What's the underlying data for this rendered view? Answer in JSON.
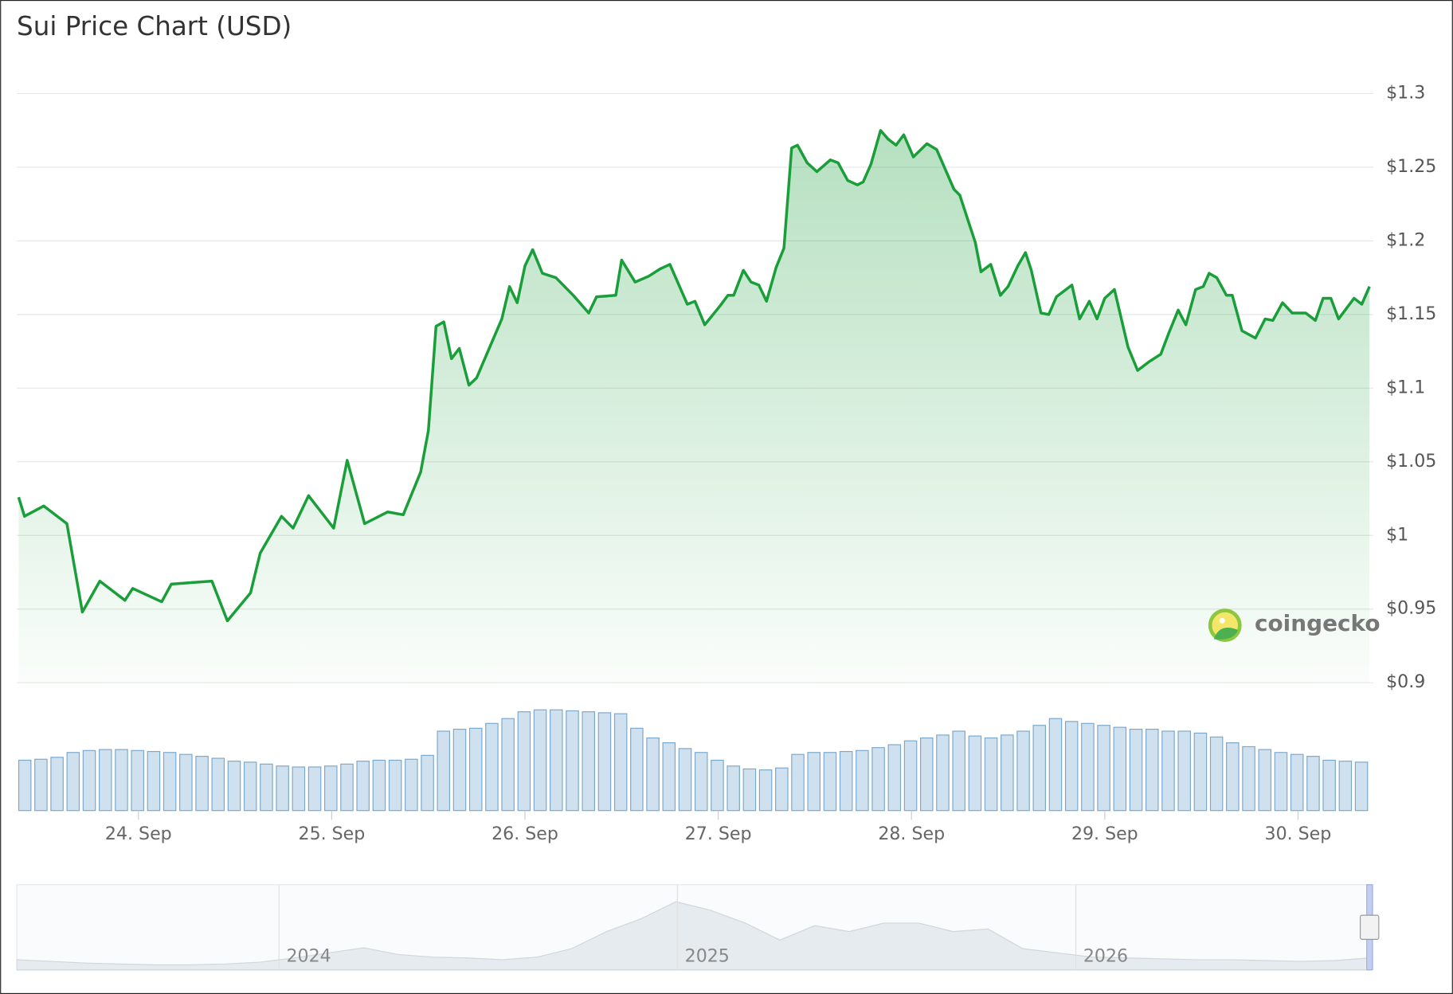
{
  "chart_data": {
    "type": "line",
    "title": "Sui Price Chart (USD)",
    "color": "#1a9e3a",
    "xlim": [
      23.38,
      30.37
    ],
    "xticks": [
      {
        "value": 24,
        "label": "24. Sep"
      },
      {
        "value": 25,
        "label": "25. Sep"
      },
      {
        "value": 26,
        "label": "26. Sep"
      },
      {
        "value": 27,
        "label": "27. Sep"
      },
      {
        "value": 28,
        "label": "28. Sep"
      },
      {
        "value": 29,
        "label": "29. Sep"
      },
      {
        "value": 30,
        "label": "30. Sep"
      }
    ],
    "ylim": [
      0.9,
      1.3
    ],
    "yticks": [
      {
        "value": 0.9,
        "label": "$0.9"
      },
      {
        "value": 0.95,
        "label": "$0.95"
      },
      {
        "value": 1,
        "label": "$1"
      },
      {
        "value": 1.05,
        "label": "$1.05"
      },
      {
        "value": 1.1,
        "label": "$1.1"
      },
      {
        "value": 1.15,
        "label": "$1.15"
      },
      {
        "value": 1.2,
        "label": "$1.2"
      },
      {
        "value": 1.25,
        "label": "$1.25"
      },
      {
        "value": 1.3,
        "label": "$1.3"
      }
    ],
    "grid": true,
    "x": [
      23.38,
      23.41,
      23.51,
      23.63,
      23.71,
      23.8,
      23.93,
      23.97,
      24.12,
      24.17,
      24.38,
      24.46,
      24.58,
      24.63,
      24.74,
      24.8,
      24.88,
      25.01,
      25.08,
      25.17,
      25.29,
      25.37,
      25.46,
      25.5,
      25.54,
      25.58,
      25.62,
      25.66,
      25.71,
      25.75,
      25.88,
      25.92,
      25.96,
      26.0,
      26.04,
      26.09,
      26.16,
      26.25,
      26.33,
      26.37,
      26.47,
      26.5,
      26.57,
      26.64,
      26.7,
      26.75,
      26.84,
      26.88,
      26.93,
      27.01,
      27.05,
      27.08,
      27.13,
      27.17,
      27.21,
      27.25,
      27.3,
      27.34,
      27.38,
      27.41,
      27.46,
      27.51,
      27.58,
      27.62,
      27.67,
      27.72,
      27.75,
      27.79,
      27.84,
      27.88,
      27.92,
      27.96,
      28.01,
      28.08,
      28.13,
      28.22,
      28.25,
      28.3,
      28.33,
      28.36,
      28.41,
      28.46,
      28.5,
      28.55,
      28.59,
      28.62,
      28.67,
      28.71,
      28.75,
      28.83,
      28.87,
      28.92,
      28.96,
      29.0,
      29.05,
      29.12,
      29.17,
      29.23,
      29.29,
      29.33,
      29.38,
      29.42,
      29.47,
      29.51,
      29.54,
      29.58,
      29.63,
      29.66,
      29.71,
      29.78,
      29.83,
      29.87,
      29.92,
      29.97,
      30.04,
      30.09,
      30.13,
      30.17,
      30.21,
      30.29,
      30.33,
      30.37
    ],
    "values": [
      1.026,
      1.013,
      1.02,
      1.008,
      0.948,
      0.969,
      0.956,
      0.964,
      0.955,
      0.967,
      0.969,
      0.942,
      0.961,
      0.988,
      1.013,
      1.005,
      1.027,
      1.005,
      1.051,
      1.008,
      1.016,
      1.014,
      1.043,
      1.071,
      1.142,
      1.145,
      1.12,
      1.127,
      1.102,
      1.107,
      1.147,
      1.169,
      1.158,
      1.183,
      1.194,
      1.178,
      1.175,
      1.163,
      1.151,
      1.162,
      1.163,
      1.187,
      1.172,
      1.176,
      1.181,
      1.184,
      1.157,
      1.159,
      1.143,
      1.156,
      1.163,
      1.163,
      1.18,
      1.172,
      1.17,
      1.159,
      1.182,
      1.195,
      1.263,
      1.265,
      1.253,
      1.247,
      1.255,
      1.253,
      1.241,
      1.238,
      1.24,
      1.252,
      1.275,
      1.269,
      1.265,
      1.272,
      1.257,
      1.266,
      1.262,
      1.235,
      1.231,
      1.211,
      1.199,
      1.179,
      1.184,
      1.163,
      1.169,
      1.183,
      1.192,
      1.18,
      1.151,
      1.15,
      1.162,
      1.17,
      1.147,
      1.159,
      1.147,
      1.161,
      1.167,
      1.128,
      1.112,
      1.118,
      1.123,
      1.137,
      1.153,
      1.143,
      1.167,
      1.169,
      1.178,
      1.175,
      1.163,
      1.163,
      1.139,
      1.134,
      1.147,
      1.146,
      1.158,
      1.151,
      1.151,
      1.146,
      1.161,
      1.161,
      1.147,
      1.161,
      1.157,
      1.169
    ],
    "volume": {
      "color": "#cfe0ee",
      "ylim": [
        0,
        110
      ],
      "values": [
        52,
        53,
        55,
        60,
        62,
        63,
        63,
        62,
        61,
        60,
        58,
        56,
        54,
        51,
        50,
        48,
        46,
        45,
        45,
        46,
        48,
        51,
        52,
        52,
        53,
        57,
        82,
        84,
        85,
        90,
        95,
        102,
        104,
        104,
        103,
        102,
        101,
        100,
        85,
        75,
        70,
        64,
        60,
        52,
        46,
        43,
        42,
        44,
        58,
        60,
        60,
        61,
        62,
        65,
        68,
        72,
        75,
        78,
        82,
        77,
        75,
        78,
        82,
        88,
        95,
        92,
        90,
        88,
        86,
        84,
        84,
        82,
        82,
        80,
        76,
        70,
        66,
        63,
        60,
        58,
        56,
        52,
        51,
        50
      ]
    },
    "navigator": {
      "xlim": [
        2023.342,
        2026.737
      ],
      "ylim": [
        0,
        100
      ],
      "xticks": [
        2024,
        2025,
        2026
      ],
      "values": [
        12,
        10,
        8,
        7,
        6,
        6,
        7,
        9,
        14,
        20,
        26,
        18,
        15,
        14,
        12,
        15,
        25,
        45,
        60,
        80,
        70,
        55,
        35,
        52,
        45,
        55,
        55,
        45,
        48,
        25,
        20,
        15,
        14,
        13,
        12,
        12,
        11,
        10,
        11,
        14
      ]
    },
    "watermark": "coingecko"
  }
}
